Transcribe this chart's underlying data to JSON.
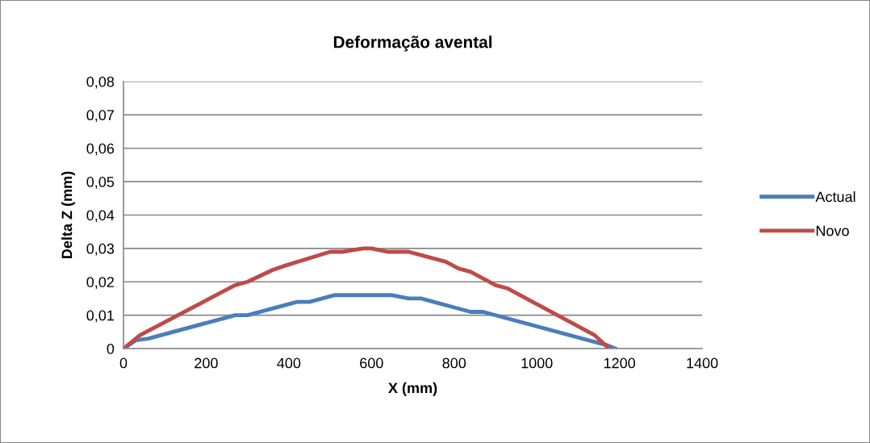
{
  "chart_data": {
    "type": "line",
    "title": "Deformação avental",
    "xlabel": "X (mm)",
    "ylabel": "Delta Z (mm)",
    "xlim": [
      0,
      1400
    ],
    "xticks": [
      0,
      200,
      400,
      600,
      800,
      1000,
      1200,
      1400
    ],
    "ylim": [
      0,
      0.08
    ],
    "yticks": [
      {
        "value": 0,
        "label": "0"
      },
      {
        "value": 0.01,
        "label": "0,01"
      },
      {
        "value": 0.02,
        "label": "0,02"
      },
      {
        "value": 0.03,
        "label": "0,03"
      },
      {
        "value": 0.04,
        "label": "0,04"
      },
      {
        "value": 0.05,
        "label": "0,05"
      },
      {
        "value": 0.06,
        "label": "0,06"
      },
      {
        "value": 0.07,
        "label": "0,07"
      },
      {
        "value": 0.08,
        "label": "0,08"
      }
    ],
    "grid": "y",
    "legend": "right",
    "marker": "none",
    "line_style": "solid",
    "series": [
      {
        "name": "Actual",
        "color": "#4a7ebb",
        "x": [
          0,
          30,
          60,
          270,
          300,
          420,
          450,
          510,
          650,
          690,
          720,
          840,
          870,
          1170,
          1190
        ],
        "values": [
          0,
          0.0025,
          0.003,
          0.01,
          0.01,
          0.014,
          0.014,
          0.016,
          0.016,
          0.015,
          0.015,
          0.011,
          0.011,
          0.001,
          0
        ]
      },
      {
        "name": "Novo",
        "color": "#be4b48",
        "x": [
          0,
          40,
          270,
          300,
          360,
          390,
          500,
          530,
          580,
          600,
          640,
          690,
          780,
          810,
          840,
          900,
          930,
          1140,
          1175
        ],
        "values": [
          0,
          0.004,
          0.019,
          0.02,
          0.0235,
          0.0248,
          0.029,
          0.029,
          0.03,
          0.03,
          0.029,
          0.029,
          0.026,
          0.024,
          0.023,
          0.019,
          0.018,
          0.004,
          0
        ]
      }
    ]
  }
}
